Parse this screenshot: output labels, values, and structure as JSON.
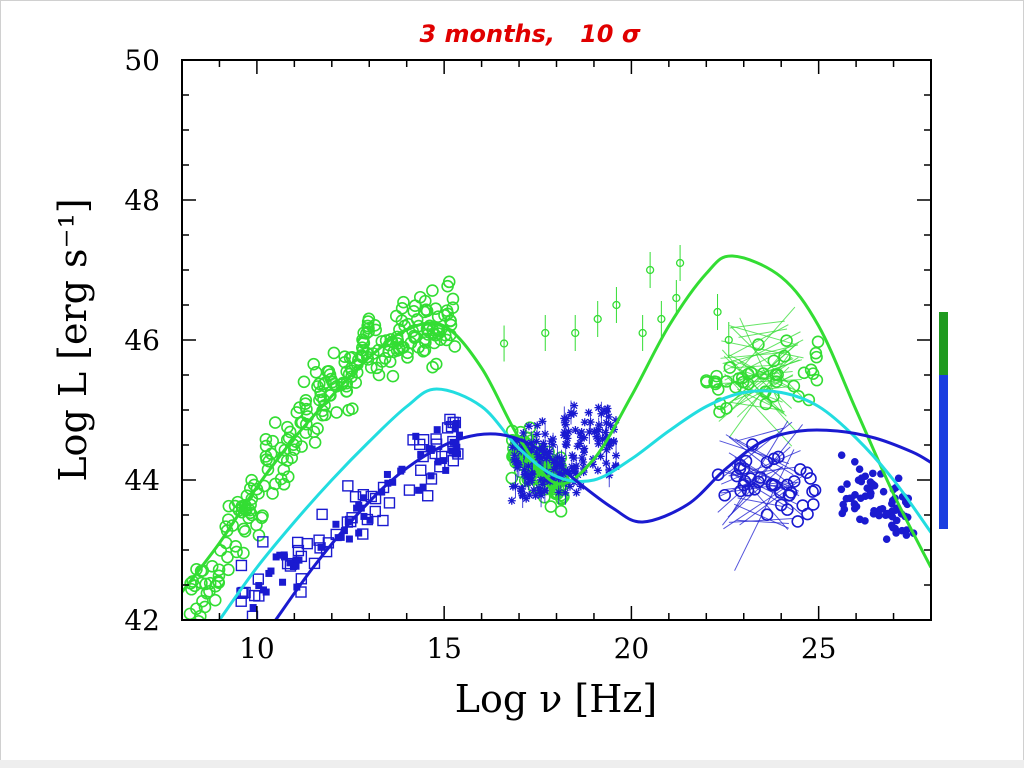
{
  "title": "3 months,   10 σ",
  "chart_data": {
    "type": "scatter",
    "xlabel": "Log ν [Hz]",
    "ylabel": "Log L [erg s⁻¹]",
    "xlim": [
      8,
      28
    ],
    "ylim": [
      42,
      50
    ],
    "xticks": [
      10,
      15,
      20,
      25
    ],
    "yticks": [
      42,
      44,
      46,
      48,
      50
    ],
    "grid": false,
    "colors": {
      "green": "#33dd33",
      "cyan": "#22dde0",
      "blue": "#1a1ad0",
      "bar_green": "#1f9a1f",
      "bar_blue": "#1a3ee0"
    },
    "curves": [
      {
        "color": "green",
        "x": [
          8,
          9,
          10,
          11,
          12,
          13,
          14,
          15,
          16,
          17,
          18,
          19,
          20,
          21,
          22,
          22.7,
          24,
          25,
          26,
          27,
          28
        ],
        "y": [
          42.4,
          43.1,
          43.9,
          44.6,
          45.2,
          45.75,
          46.15,
          46.2,
          45.6,
          44.6,
          43.95,
          44.3,
          45.2,
          46.2,
          46.95,
          47.2,
          46.9,
          46.2,
          45.0,
          43.8,
          42.75
        ]
      },
      {
        "color": "cyan",
        "x": [
          9,
          10,
          11,
          12,
          13,
          14,
          14.8,
          16,
          17,
          18,
          19,
          20,
          21,
          22,
          23,
          24,
          25,
          26,
          27,
          28
        ],
        "y": [
          42.0,
          42.75,
          43.4,
          44.0,
          44.55,
          45.05,
          45.3,
          45.05,
          44.45,
          44.05,
          44.0,
          44.3,
          44.7,
          45.05,
          45.25,
          45.25,
          45.05,
          44.6,
          44.0,
          43.25
        ]
      },
      {
        "color": "blue",
        "x": [
          10.5,
          11.5,
          12.5,
          13.5,
          14.5,
          15.5,
          16.5,
          17.5,
          18.5,
          19.5,
          20.3,
          21.5,
          22.5,
          23.5,
          24.5,
          25.5,
          26.5,
          27.5,
          28
        ],
        "y": [
          42.0,
          42.75,
          43.4,
          43.95,
          44.35,
          44.6,
          44.65,
          44.45,
          44.0,
          43.6,
          43.4,
          43.65,
          44.15,
          44.55,
          44.7,
          44.7,
          44.6,
          44.4,
          44.25
        ]
      }
    ],
    "groups": [
      {
        "name": "green-radio-optical",
        "color": "green",
        "marker": "circle",
        "n": 260,
        "x": [
          8.2,
          15.3
        ],
        "center": [
          [
            8.5,
            42.3
          ],
          [
            10,
            43.8
          ],
          [
            11.5,
            45.0
          ],
          [
            13,
            45.9
          ],
          [
            14.3,
            46.3
          ],
          [
            15,
            46.2
          ]
        ],
        "spread": 0.55
      },
      {
        "name": "green-xray",
        "color": "green",
        "marker": "circle",
        "n": 140,
        "x": [
          16.8,
          18.2
        ],
        "center": [
          [
            17,
            44.4
          ],
          [
            18,
            44.0
          ]
        ],
        "spread": 0.35
      },
      {
        "name": "green-gamma",
        "color": "green",
        "marker": "circle",
        "n": 40,
        "x": [
          22,
          25
        ],
        "center": [
          [
            22.5,
            45.3
          ],
          [
            24.5,
            45.6
          ]
        ],
        "spread": 0.45
      },
      {
        "name": "blue-radio-optical",
        "color": "blue",
        "marker": "square",
        "n": 120,
        "x": [
          9.5,
          15.5
        ],
        "center": [
          [
            10,
            42.4
          ],
          [
            12,
            43.2
          ],
          [
            14.5,
            44.2
          ],
          [
            15.3,
            44.6
          ]
        ],
        "spread": 0.45
      },
      {
        "name": "blue-xray",
        "color": "blue",
        "marker": "star",
        "n": 180,
        "x": [
          16.8,
          19.6
        ],
        "center": [
          [
            17,
            44.3
          ],
          [
            18,
            44.2
          ],
          [
            19,
            44.6
          ]
        ],
        "spread": 0.6
      },
      {
        "name": "blue-gamma",
        "color": "blue",
        "marker": "circle",
        "n": 40,
        "x": [
          22.3,
          25
        ],
        "center": [
          [
            22.5,
            44.2
          ],
          [
            24.5,
            43.8
          ]
        ],
        "spread": 0.4
      },
      {
        "name": "blue-tev",
        "color": "blue",
        "marker": "dot",
        "n": 70,
        "x": [
          25.6,
          27.6
        ],
        "center": [
          [
            26,
            43.9
          ],
          [
            27,
            43.6
          ]
        ],
        "spread": 0.5
      }
    ],
    "error_points": [
      {
        "color": "green",
        "x": 16.6,
        "y": 45.95
      },
      {
        "color": "green",
        "x": 17.7,
        "y": 46.1
      },
      {
        "color": "green",
        "x": 18.5,
        "y": 46.1
      },
      {
        "color": "green",
        "x": 19.1,
        "y": 46.3
      },
      {
        "color": "green",
        "x": 19.6,
        "y": 46.5
      },
      {
        "color": "green",
        "x": 20.3,
        "y": 46.1
      },
      {
        "color": "green",
        "x": 20.5,
        "y": 47.0
      },
      {
        "color": "green",
        "x": 20.8,
        "y": 46.3
      },
      {
        "color": "green",
        "x": 21.2,
        "y": 46.6
      },
      {
        "color": "green",
        "x": 21.3,
        "y": 47.1
      },
      {
        "color": "green",
        "x": 22.3,
        "y": 46.4
      },
      {
        "color": "green",
        "x": 22.6,
        "y": 46.0
      }
    ],
    "side_bar": {
      "segments": [
        {
          "color": "bar_green",
          "from": 46.4,
          "to": 45.5
        },
        {
          "color": "bar_blue",
          "from": 45.5,
          "to": 43.3
        }
      ]
    }
  }
}
